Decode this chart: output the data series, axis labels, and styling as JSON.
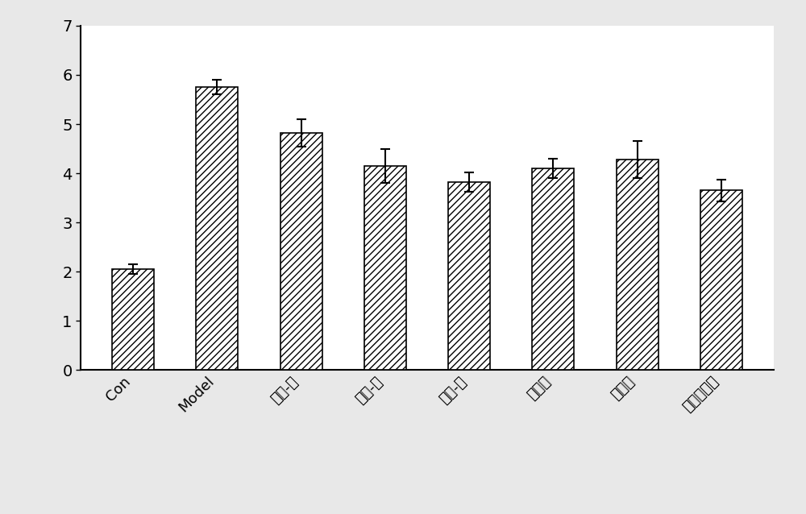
{
  "categories": [
    "Con",
    "Model",
    "复方-低",
    "复方-中",
    "复方-高",
    "黄连组",
    "人参组",
    "卡托普利组"
  ],
  "values": [
    2.05,
    5.75,
    4.82,
    4.15,
    3.82,
    4.1,
    4.28,
    3.65
  ],
  "errors": [
    0.1,
    0.15,
    0.28,
    0.35,
    0.2,
    0.2,
    0.38,
    0.22
  ],
  "bar_color": "#ffffff",
  "bar_edgecolor": "#000000",
  "hatch": "////",
  "ylim": [
    0,
    7
  ],
  "yticks": [
    0,
    1,
    2,
    3,
    4,
    5,
    6,
    7
  ],
  "tick_fontsize": 14,
  "bar_width": 0.5,
  "figsize": [
    10.0,
    6.38
  ],
  "dpi": 100,
  "background_color": "#e8e8e8",
  "plot_bg_color": "#ffffff",
  "errorbar_color": "#000000",
  "errorbar_capsize": 4,
  "errorbar_linewidth": 1.5,
  "label_rotation": 45,
  "label_ha": "right",
  "label_fontsize": 13,
  "spine_linewidth": 1.5
}
